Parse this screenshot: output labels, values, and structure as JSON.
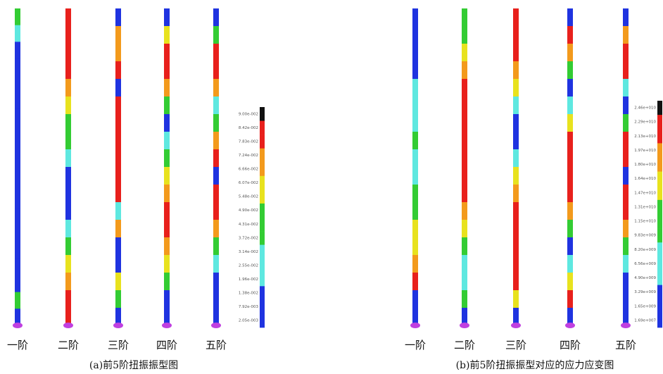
{
  "panel_a": {
    "mode_labels": [
      "一阶",
      "二阶",
      "三阶",
      "四阶",
      "五阶"
    ],
    "caption": "(a)前5阶扭振振型图",
    "colorbar_labels": [
      "9.00e-002",
      "8.42e-002",
      "7.83e-002",
      "7.24e-002",
      "6.66e-002",
      "6.07e-002",
      "5.48e-002",
      "4.90e-002",
      "4.31e-002",
      "3.72e-002",
      "3.14e-002",
      "2.55e-002",
      "1.96e-002",
      "1.38e-002",
      "7.92e-003",
      "2.05e-003"
    ]
  },
  "panel_b": {
    "mode_labels": [
      "一阶",
      "二阶",
      "三阶",
      "四阶",
      "五阶"
    ],
    "caption": "(b)前5阶扭振振型对应的应力应变图",
    "colorbar_labels": [
      "2.46e+010",
      "2.29e+010",
      "2.13e+010",
      "1.97e+010",
      "1.80e+010",
      "1.64e+010",
      "1.47e+010",
      "1.31e+010",
      "1.15e+010",
      "9.83e+009",
      "8.20e+009",
      "6.56e+009",
      "4.90e+009",
      "3.29e+009",
      "1.65e+009",
      "1.69e+007"
    ]
  }
}
